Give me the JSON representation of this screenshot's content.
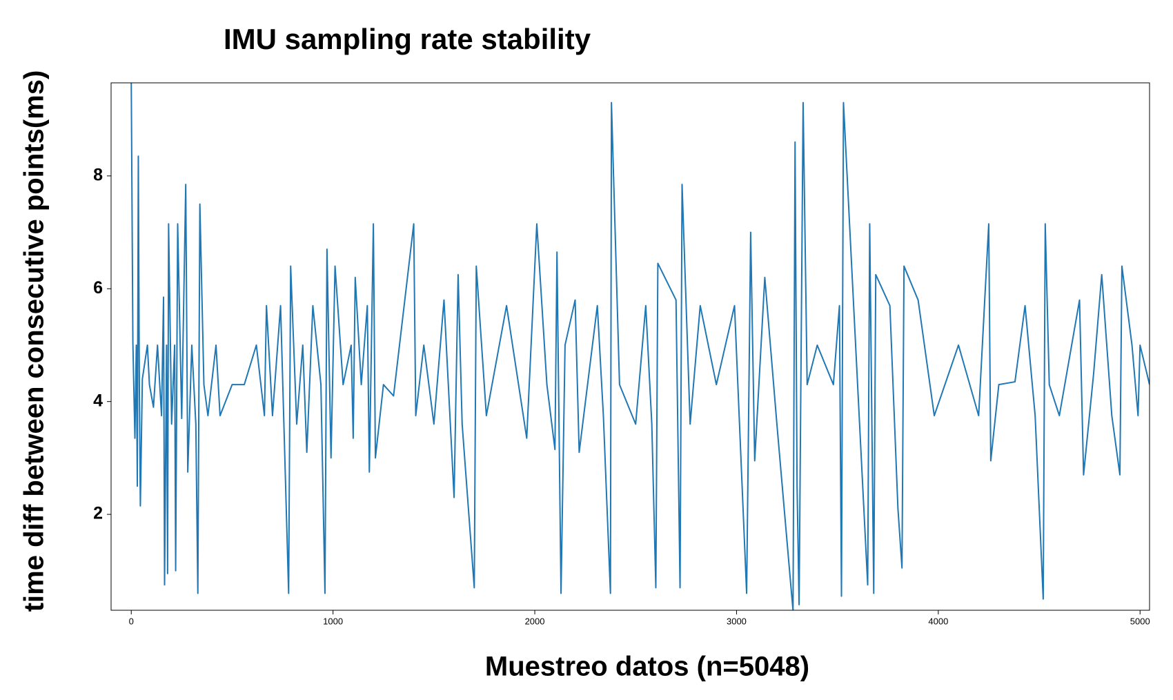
{
  "chart_data": {
    "type": "line",
    "title": "IMU sampling rate stability",
    "x_label": "Muestreo datos (n=5048)",
    "y_label": "time diff between consecutive points(ms)",
    "x": [
      0,
      8,
      18,
      25,
      30,
      35,
      40,
      45,
      55,
      80,
      90,
      110,
      130,
      150,
      160,
      165,
      175,
      180,
      185,
      200,
      215,
      220,
      230,
      250,
      270,
      280,
      300,
      320,
      330,
      340,
      360,
      380,
      420,
      440,
      500,
      560,
      620,
      660,
      670,
      700,
      740,
      780,
      790,
      820,
      850,
      870,
      900,
      940,
      960,
      970,
      990,
      1010,
      1050,
      1090,
      1100,
      1110,
      1140,
      1170,
      1180,
      1200,
      1210,
      1250,
      1300,
      1400,
      1410,
      1450,
      1500,
      1550,
      1600,
      1620,
      1640,
      1700,
      1710,
      1760,
      1860,
      1960,
      2010,
      2060,
      2100,
      2110,
      2130,
      2150,
      2200,
      2220,
      2310,
      2340,
      2375,
      2380,
      2420,
      2500,
      2550,
      2580,
      2600,
      2610,
      2700,
      2720,
      2730,
      2770,
      2820,
      2900,
      2990,
      3050,
      3070,
      3090,
      3140,
      3200,
      3270,
      3280,
      3290,
      3300,
      3310,
      3330,
      3350,
      3400,
      3480,
      3510,
      3520,
      3530,
      3600,
      3650,
      3660,
      3680,
      3690,
      3760,
      3800,
      3820,
      3830,
      3900,
      3980,
      4100,
      4200,
      4250,
      4260,
      4300,
      4380,
      4430,
      4480,
      4520,
      4530,
      4550,
      4600,
      4700,
      4720,
      4770,
      4810,
      4860,
      4900,
      4910,
      4960,
      4990,
      5000,
      5047
    ],
    "series": [
      {
        "name": "time diff",
        "color": "#1f77b4",
        "values": [
          9.65,
          5.05,
          3.35,
          5.0,
          2.5,
          8.35,
          4.3,
          2.15,
          4.4,
          5.0,
          4.3,
          3.9,
          5.0,
          3.75,
          5.85,
          0.75,
          5.0,
          0.95,
          7.15,
          3.6,
          5.0,
          1.0,
          7.15,
          3.7,
          7.85,
          2.75,
          5.0,
          3.6,
          0.6,
          7.5,
          4.3,
          3.75,
          5.0,
          3.75,
          4.3,
          4.3,
          5.0,
          3.75,
          5.7,
          3.75,
          5.7,
          0.6,
          6.4,
          3.6,
          5.0,
          3.1,
          5.7,
          4.3,
          0.6,
          6.7,
          3.0,
          6.4,
          4.3,
          5.0,
          3.35,
          6.2,
          4.3,
          5.7,
          2.75,
          7.15,
          3.0,
          4.3,
          4.1,
          7.15,
          3.75,
          5.0,
          3.6,
          5.8,
          2.3,
          6.25,
          3.6,
          0.7,
          6.4,
          3.75,
          5.7,
          3.35,
          7.15,
          4.3,
          3.15,
          6.65,
          0.6,
          5.0,
          5.8,
          3.1,
          5.7,
          3.75,
          0.6,
          9.3,
          4.3,
          3.6,
          5.7,
          3.6,
          0.7,
          6.45,
          5.8,
          0.7,
          7.85,
          3.6,
          5.7,
          4.3,
          5.7,
          0.6,
          7.0,
          2.95,
          6.2,
          3.6,
          0.7,
          0.3,
          8.6,
          2.5,
          0.4,
          9.3,
          4.3,
          5.0,
          4.3,
          5.7,
          0.55,
          9.3,
          4.3,
          0.75,
          7.15,
          0.6,
          6.25,
          5.7,
          2.1,
          1.05,
          6.4,
          5.8,
          3.75,
          5.0,
          3.75,
          7.15,
          2.95,
          4.3,
          4.35,
          5.7,
          3.75,
          0.5,
          7.15,
          4.3,
          3.75,
          5.8,
          2.7,
          4.5,
          6.25,
          3.75,
          2.7,
          6.4,
          5.0,
          3.75,
          5.0,
          4.3
        ]
      }
    ],
    "xlim": [
      -100,
      5047
    ],
    "ylim": [
      0.3,
      9.65
    ],
    "xticks": [
      0,
      1000,
      2000,
      3000,
      4000,
      5000
    ],
    "yticks": [
      2,
      4,
      6,
      8
    ],
    "grid": false
  }
}
